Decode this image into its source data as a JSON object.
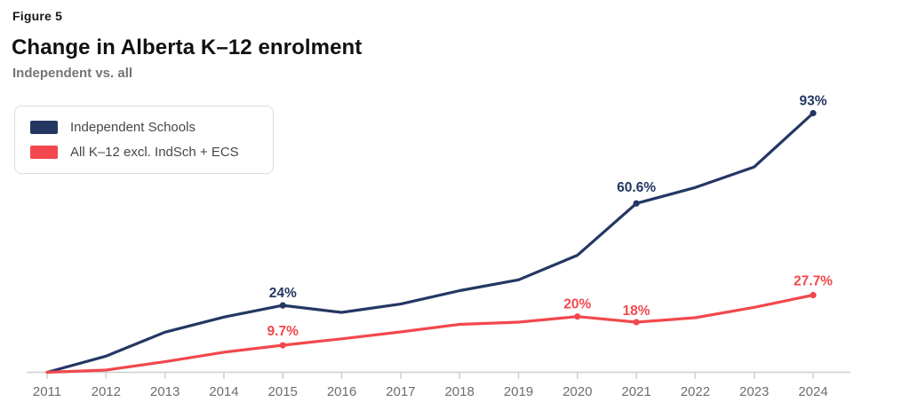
{
  "header": {
    "figure_label": "Figure 5",
    "title": "Change in Alberta K–12 enrolment",
    "subtitle": "Independent vs. all"
  },
  "legend": {
    "position": "top-left",
    "items": [
      {
        "label": "Independent Schools",
        "color": "#243763"
      },
      {
        "label": "All K–12 excl. IndSch + ECS",
        "color": "#f2484d"
      }
    ]
  },
  "chart_data": {
    "type": "line",
    "title": "Change in Alberta K–12 enrolment",
    "subtitle": "Independent vs. all",
    "xlabel": "",
    "ylabel": "",
    "x": [
      2011,
      2012,
      2013,
      2014,
      2015,
      2016,
      2017,
      2018,
      2019,
      2020,
      2021,
      2022,
      2023,
      2024
    ],
    "series": [
      {
        "name": "Independent Schools",
        "color": "#243763",
        "unit": "%",
        "values": [
          0,
          5.8,
          14.4,
          19.8,
          24,
          21.5,
          24.5,
          29.3,
          33.2,
          42,
          60.6,
          66.3,
          73.7,
          93
        ]
      },
      {
        "name": "All K–12 excl. IndSch + ECS",
        "color": "#f2484d",
        "unit": "%",
        "values": [
          0,
          0.8,
          3.8,
          7.2,
          9.7,
          12,
          14.5,
          17.2,
          18,
          20,
          18,
          19.6,
          23.3,
          27.7
        ]
      }
    ],
    "annotations": [
      {
        "series": 0,
        "year": 2015,
        "text": "24%",
        "dy": -9
      },
      {
        "series": 0,
        "year": 2021,
        "text": "60.6%",
        "dy": -13
      },
      {
        "series": 0,
        "year": 2024,
        "text": "93%",
        "dy": -9
      },
      {
        "series": 1,
        "year": 2015,
        "text": "9.7%",
        "dy": -11
      },
      {
        "series": 1,
        "year": 2020,
        "text": "20%",
        "dy": -9
      },
      {
        "series": 1,
        "year": 2021,
        "text": "18%",
        "dy": -8
      },
      {
        "series": 1,
        "year": 2024,
        "text": "27.7%",
        "dy": -11
      }
    ],
    "ylim": [
      0,
      100
    ],
    "grid": false,
    "legend_position": "top-left",
    "axis_color": "#cfcfcf",
    "tick_label_color": "#6e6e6e"
  }
}
